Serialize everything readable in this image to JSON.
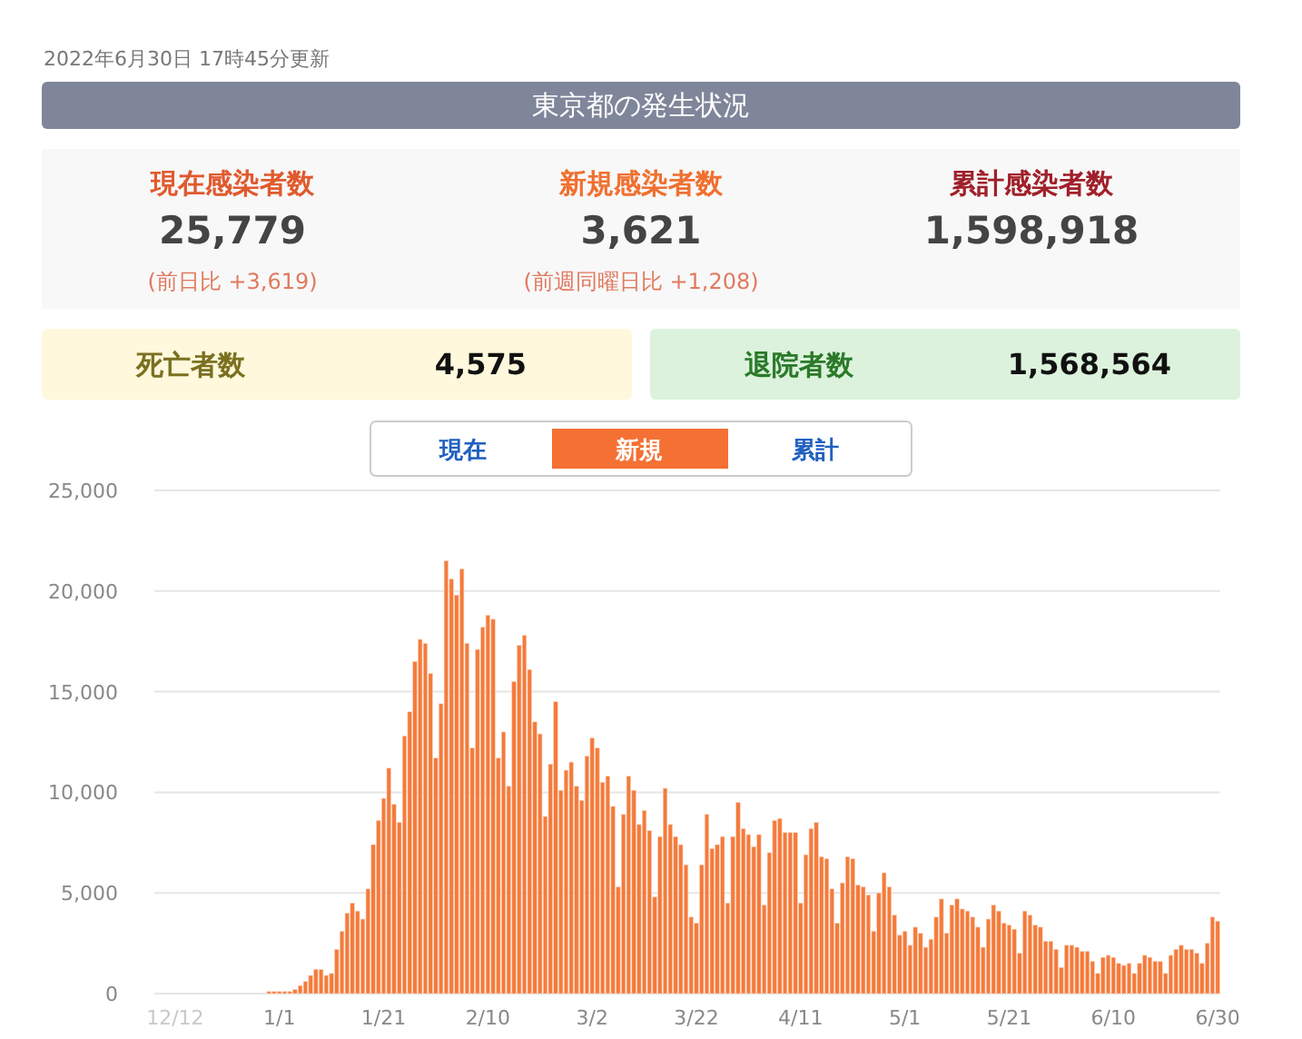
{
  "chart_data": [
    {
      "type": "other",
      "title": "東京都の発生状況",
      "subtitle": "2022年6月30日 17時45分更新",
      "annotations": [
        "現在感染者数",
        "25,779",
        "(前日比 +3,619)",
        "新規感染者数",
        "3,621",
        "(前週同曜日比 +1,208)",
        "累計感染者数",
        "1,598,918",
        "死亡者数",
        "4,575",
        "退院者数",
        "1,568,564",
        "現在",
        "新規",
        "累計"
      ]
    },
    {
      "type": "bar",
      "color": "#f47b3b",
      "grid": "y",
      "ylim": [
        0,
        25000
      ],
      "yticks": [
        0,
        {
          "value": 5000,
          "label": "5,000"
        },
        {
          "value": 10000,
          "label": "10,000"
        },
        {
          "value": 15000,
          "label": "15,000"
        },
        {
          "value": 20000,
          "label": "20,000"
        },
        {
          "value": 25000,
          "label": "25,000"
        }
      ],
      "categories": [
        "12/12",
        null,
        null,
        null,
        null,
        null,
        null,
        null,
        null,
        null,
        null,
        null,
        null,
        null,
        null,
        null,
        null,
        null,
        null,
        null,
        "1/1",
        null,
        null,
        null,
        null,
        null,
        null,
        null,
        null,
        null,
        null,
        null,
        null,
        null,
        null,
        null,
        null,
        null,
        null,
        null,
        "1/21",
        null,
        null,
        null,
        null,
        null,
        null,
        null,
        null,
        null,
        null,
        null,
        null,
        null,
        null,
        null,
        null,
        null,
        null,
        null,
        "2/10",
        null,
        null,
        null,
        null,
        null,
        null,
        null,
        null,
        null,
        null,
        null,
        null,
        null,
        null,
        null,
        null,
        null,
        null,
        null,
        "3/2",
        null,
        null,
        null,
        null,
        null,
        null,
        null,
        null,
        null,
        null,
        null,
        null,
        null,
        null,
        null,
        null,
        null,
        null,
        null,
        "3/22",
        null,
        null,
        null,
        null,
        null,
        null,
        null,
        null,
        null,
        null,
        null,
        null,
        null,
        null,
        null,
        null,
        null,
        null,
        null,
        "4/11",
        null,
        null,
        null,
        null,
        null,
        null,
        null,
        null,
        null,
        null,
        null,
        null,
        null,
        null,
        null,
        null,
        null,
        null,
        null,
        "5/1",
        null,
        null,
        null,
        null,
        null,
        null,
        null,
        null,
        null,
        null,
        null,
        null,
        null,
        null,
        null,
        null,
        null,
        null,
        null,
        "5/21",
        null,
        null,
        null,
        null,
        null,
        null,
        null,
        null,
        null,
        null,
        null,
        null,
        null,
        null,
        null,
        null,
        null,
        null,
        null,
        "6/10",
        null,
        null,
        null,
        null,
        null,
        null,
        null,
        null,
        null,
        null,
        null,
        null,
        null,
        null,
        null,
        null,
        null,
        null,
        null,
        "6/30"
      ],
      "values": [
        0,
        0,
        0,
        0,
        0,
        0,
        0,
        0,
        0,
        0,
        0,
        0,
        0,
        0,
        0,
        0,
        0,
        0,
        100,
        100,
        100,
        100,
        100,
        200,
        400,
        600,
        900,
        1200,
        1200,
        900,
        1000,
        2200,
        3100,
        4000,
        4500,
        4100,
        3700,
        5200,
        7400,
        8600,
        9700,
        11200,
        9400,
        8500,
        12800,
        14000,
        16500,
        17600,
        17400,
        15900,
        11700,
        14400,
        21500,
        20600,
        19800,
        21100,
        17400,
        12200,
        17100,
        18200,
        18800,
        18600,
        11700,
        13000,
        10300,
        15500,
        17300,
        17800,
        16100,
        13500,
        12900,
        8800,
        11400,
        14500,
        10100,
        11100,
        11500,
        10300,
        9600,
        11800,
        12700,
        12200,
        10500,
        10800,
        9300,
        5300,
        8900,
        10800,
        10100,
        8400,
        9100,
        8100,
        4800,
        7800,
        10200,
        8400,
        7800,
        7400,
        6400,
        3800,
        3500,
        6400,
        8900,
        7200,
        7400,
        7800,
        4500,
        7800,
        9500,
        8200,
        7900,
        7300,
        7900,
        4400,
        7000,
        8600,
        8700,
        8000,
        8000,
        8000,
        4500,
        6900,
        8200,
        8500,
        6800,
        6700,
        5200,
        3500,
        5500,
        6800,
        6700,
        5400,
        5300,
        4900,
        3100,
        5000,
        6000,
        5300,
        3900,
        2900,
        3100,
        2400,
        3300,
        3000,
        2300,
        2700,
        3800,
        4700,
        3000,
        4400,
        4700,
        4200,
        4100,
        3800,
        3300,
        2300,
        3700,
        4400,
        4100,
        3500,
        3400,
        3200,
        2000,
        4100,
        3900,
        3400,
        3300,
        2600,
        2600,
        2200,
        1300,
        2400,
        2400,
        2300,
        2100,
        2100,
        1600,
        1000,
        1800,
        1900,
        1800,
        1500,
        1400,
        1500,
        1000,
        1500,
        1900,
        1800,
        1600,
        1600,
        1000,
        1900,
        2200,
        2400,
        2200,
        2200,
        2000,
        1500,
        2500,
        3800,
        3600
      ]
    }
  ]
}
